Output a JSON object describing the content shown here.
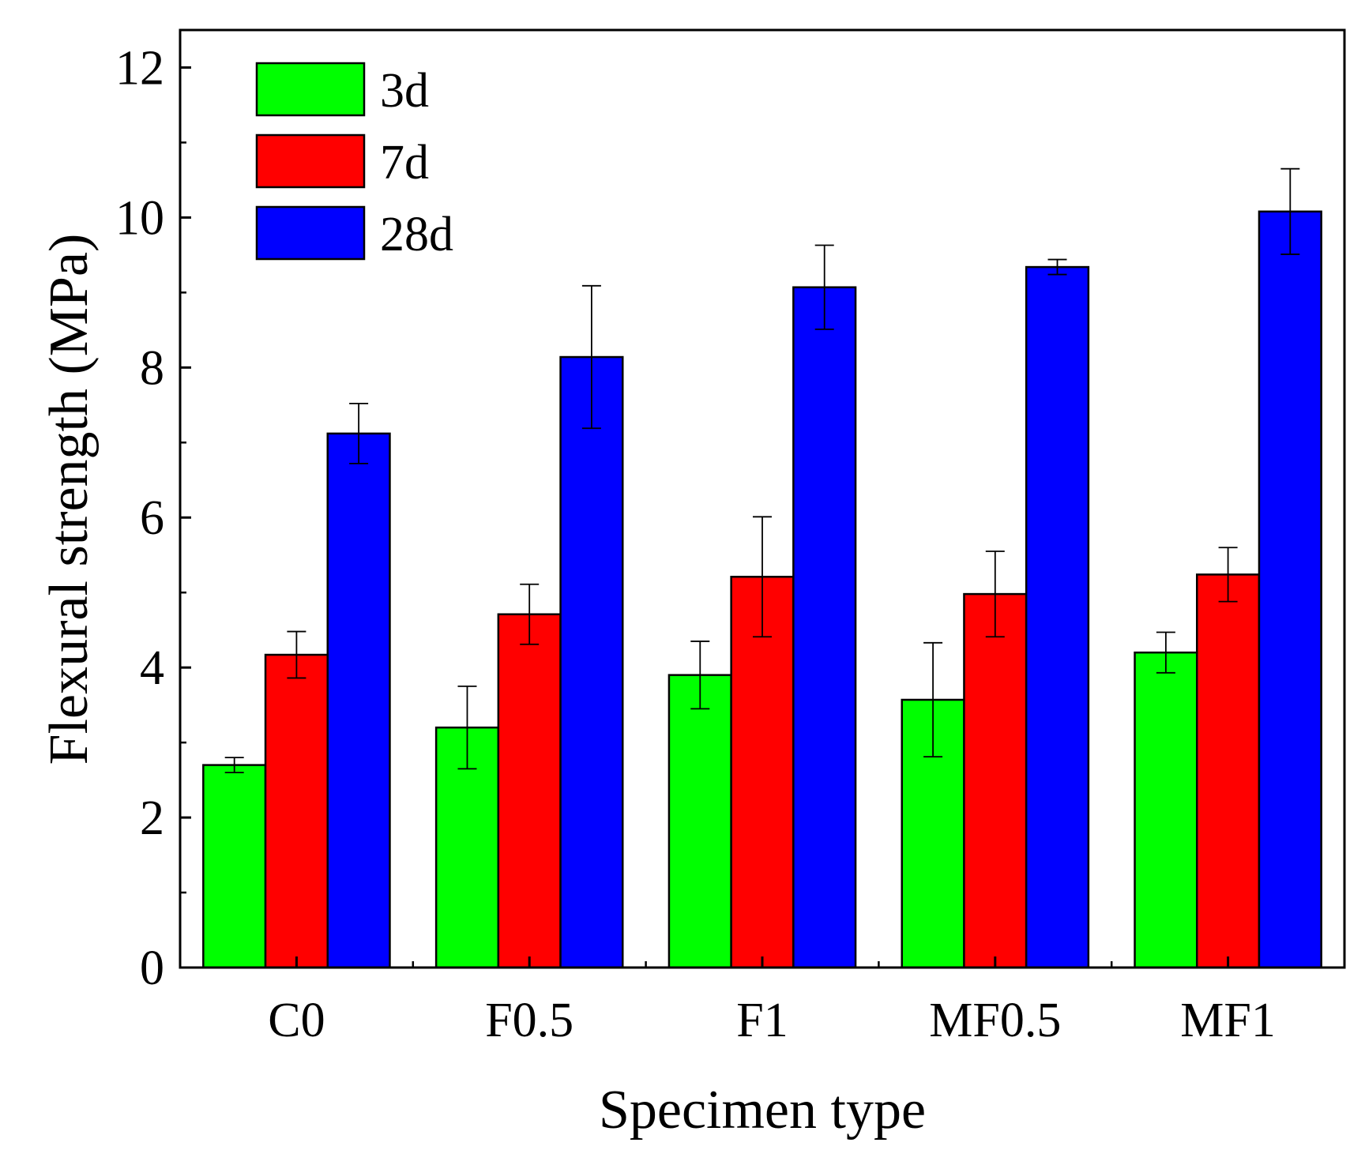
{
  "chart_data": {
    "type": "bar",
    "title": "",
    "xlabel": "Specimen type",
    "ylabel": "Flexural strength (MPa)",
    "ylim": [
      0,
      12.5
    ],
    "y_ticks": [
      0,
      2,
      4,
      6,
      8,
      10,
      12
    ],
    "y_tick_labels": [
      "0",
      "2",
      "4",
      "6",
      "8",
      "10",
      "12"
    ],
    "categories": [
      "C0",
      "F0.5",
      "F1",
      "MF0.5",
      "MF1"
    ],
    "series": [
      {
        "name": "3d",
        "color": "#00ff00",
        "values": [
          2.7,
          3.2,
          3.9,
          3.57,
          4.2
        ],
        "errors": [
          0.1,
          0.55,
          0.45,
          0.76,
          0.27
        ]
      },
      {
        "name": "7d",
        "color": "#ff0000",
        "values": [
          4.17,
          4.71,
          5.21,
          4.98,
          5.24
        ],
        "errors": [
          0.31,
          0.4,
          0.8,
          0.57,
          0.36
        ]
      },
      {
        "name": "28d",
        "color": "#0000ff",
        "values": [
          7.12,
          8.14,
          9.07,
          9.34,
          10.08
        ],
        "errors": [
          0.4,
          0.95,
          0.56,
          0.1,
          0.57
        ]
      }
    ],
    "legend_position": "top-left",
    "grid": false
  }
}
